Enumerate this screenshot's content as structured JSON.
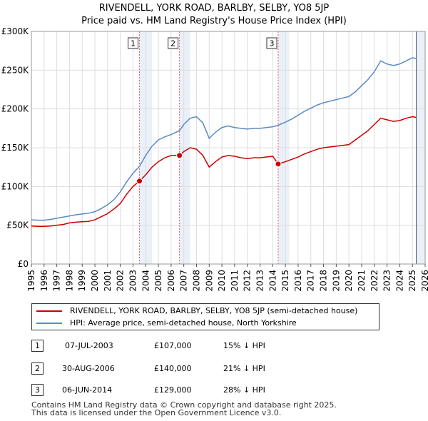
{
  "title_line1": "RIVENDELL, YORK ROAD, BARLBY, SELBY, YO8 5JP",
  "title_line2": "Price paid vs. HM Land Registry's House Price Index (HPI)",
  "chart_data": {
    "type": "line",
    "xlim": [
      1995,
      2026
    ],
    "ylim": [
      0,
      300000
    ],
    "y_ticks": [
      {
        "value": 0,
        "label": "£0"
      },
      {
        "value": 50000,
        "label": "£50K"
      },
      {
        "value": 100000,
        "label": "£100K"
      },
      {
        "value": 150000,
        "label": "£150K"
      },
      {
        "value": 200000,
        "label": "£200K"
      },
      {
        "value": 250000,
        "label": "£250K"
      },
      {
        "value": 300000,
        "label": "£300K"
      }
    ],
    "x_ticks": [
      "1995",
      "1996",
      "1997",
      "1998",
      "1999",
      "2000",
      "2001",
      "2002",
      "2003",
      "2004",
      "2005",
      "2006",
      "2007",
      "2008",
      "2009",
      "2010",
      "2011",
      "2012",
      "2013",
      "2014",
      "2015",
      "2016",
      "2017",
      "2018",
      "2019",
      "2020",
      "2021",
      "2022",
      "2023",
      "2024",
      "2025",
      "2026"
    ],
    "grid": true,
    "series": [
      {
        "name": "RIVENDELL, YORK ROAD, BARLBY, SELBY, YO8 5JP (semi-detached house)",
        "color": "#cc0000",
        "points": [
          [
            1995.0,
            49000
          ],
          [
            1995.5,
            48500
          ],
          [
            1996.0,
            48500
          ],
          [
            1996.5,
            49000
          ],
          [
            1997.0,
            50000
          ],
          [
            1997.5,
            51000
          ],
          [
            1998.0,
            53000
          ],
          [
            1998.5,
            54000
          ],
          [
            1999.0,
            54500
          ],
          [
            1999.5,
            55000
          ],
          [
            2000.0,
            57000
          ],
          [
            2000.5,
            61000
          ],
          [
            2001.0,
            65000
          ],
          [
            2001.5,
            71000
          ],
          [
            2002.0,
            78000
          ],
          [
            2002.5,
            90000
          ],
          [
            2003.0,
            100000
          ],
          [
            2003.51,
            107000
          ],
          [
            2004.0,
            115000
          ],
          [
            2004.5,
            125000
          ],
          [
            2005.0,
            132000
          ],
          [
            2005.5,
            137000
          ],
          [
            2006.0,
            140000
          ],
          [
            2006.66,
            140000
          ],
          [
            2007.0,
            145000
          ],
          [
            2007.5,
            150000
          ],
          [
            2008.0,
            148000
          ],
          [
            2008.5,
            140000
          ],
          [
            2009.0,
            125000
          ],
          [
            2009.5,
            132000
          ],
          [
            2010.0,
            138000
          ],
          [
            2010.5,
            140000
          ],
          [
            2011.0,
            139000
          ],
          [
            2011.5,
            137000
          ],
          [
            2012.0,
            136000
          ],
          [
            2012.5,
            137000
          ],
          [
            2013.0,
            137000
          ],
          [
            2013.5,
            138000
          ],
          [
            2014.0,
            139000
          ],
          [
            2014.43,
            129000
          ],
          [
            2015.0,
            132000
          ],
          [
            2015.5,
            135000
          ],
          [
            2016.0,
            138000
          ],
          [
            2016.5,
            142000
          ],
          [
            2017.0,
            145000
          ],
          [
            2017.5,
            148000
          ],
          [
            2018.0,
            150000
          ],
          [
            2018.5,
            151000
          ],
          [
            2019.0,
            152000
          ],
          [
            2019.5,
            153000
          ],
          [
            2020.0,
            154000
          ],
          [
            2020.5,
            160000
          ],
          [
            2021.0,
            166000
          ],
          [
            2021.5,
            172000
          ],
          [
            2022.0,
            180000
          ],
          [
            2022.5,
            188000
          ],
          [
            2023.0,
            186000
          ],
          [
            2023.5,
            184000
          ],
          [
            2024.0,
            185000
          ],
          [
            2024.5,
            188000
          ],
          [
            2025.0,
            190000
          ],
          [
            2025.3,
            189000
          ]
        ]
      },
      {
        "name": "HPI: Average price, semi-detached house, North Yorkshire",
        "color": "#5b8ac4",
        "points": [
          [
            1995.0,
            57000
          ],
          [
            1995.5,
            56500
          ],
          [
            1996.0,
            56500
          ],
          [
            1996.5,
            57500
          ],
          [
            1997.0,
            59000
          ],
          [
            1997.5,
            60500
          ],
          [
            1998.0,
            62000
          ],
          [
            1998.5,
            63500
          ],
          [
            1999.0,
            64500
          ],
          [
            1999.5,
            65500
          ],
          [
            2000.0,
            67500
          ],
          [
            2000.5,
            71500
          ],
          [
            2001.0,
            76500
          ],
          [
            2001.5,
            83000
          ],
          [
            2002.0,
            93000
          ],
          [
            2002.5,
            106000
          ],
          [
            2003.0,
            117000
          ],
          [
            2003.51,
            126000
          ],
          [
            2004.0,
            140000
          ],
          [
            2004.5,
            152000
          ],
          [
            2005.0,
            160000
          ],
          [
            2005.5,
            164000
          ],
          [
            2006.0,
            167000
          ],
          [
            2006.66,
            172000
          ],
          [
            2007.0,
            180000
          ],
          [
            2007.5,
            188000
          ],
          [
            2008.0,
            190000
          ],
          [
            2008.5,
            182000
          ],
          [
            2009.0,
            162000
          ],
          [
            2009.5,
            170000
          ],
          [
            2010.0,
            176000
          ],
          [
            2010.5,
            178000
          ],
          [
            2011.0,
            176000
          ],
          [
            2011.5,
            175000
          ],
          [
            2012.0,
            174000
          ],
          [
            2012.5,
            175000
          ],
          [
            2013.0,
            175000
          ],
          [
            2013.5,
            176000
          ],
          [
            2014.0,
            177000
          ],
          [
            2014.43,
            179000
          ],
          [
            2015.0,
            183000
          ],
          [
            2015.5,
            187000
          ],
          [
            2016.0,
            192000
          ],
          [
            2016.5,
            197000
          ],
          [
            2017.0,
            201000
          ],
          [
            2017.5,
            205000
          ],
          [
            2018.0,
            208000
          ],
          [
            2018.5,
            210000
          ],
          [
            2019.0,
            212000
          ],
          [
            2019.5,
            214000
          ],
          [
            2020.0,
            216000
          ],
          [
            2020.5,
            222000
          ],
          [
            2021.0,
            230000
          ],
          [
            2021.5,
            238000
          ],
          [
            2022.0,
            248000
          ],
          [
            2022.5,
            262000
          ],
          [
            2023.0,
            258000
          ],
          [
            2023.5,
            256000
          ],
          [
            2024.0,
            258000
          ],
          [
            2024.5,
            262000
          ],
          [
            2025.0,
            266000
          ],
          [
            2025.3,
            265000
          ]
        ]
      }
    ],
    "purchases": [
      {
        "label": "1",
        "x": 2003.51,
        "price": 107000
      },
      {
        "label": "2",
        "x": 2006.66,
        "price": 140000
      },
      {
        "label": "3",
        "x": 2014.43,
        "price": 129000
      }
    ],
    "highlight_ranges": [
      [
        2003.51,
        2004.5
      ],
      [
        2006.66,
        2007.5
      ],
      [
        2014.43,
        2015.3
      ],
      [
        2025.3,
        2026
      ]
    ]
  },
  "legend": [
    {
      "label": "RIVENDELL, YORK ROAD, BARLBY, SELBY, YO8 5JP (semi-detached house)",
      "color": "#cc0000"
    },
    {
      "label": "HPI: Average price, semi-detached house, North Yorkshire",
      "color": "#5b8ac4"
    }
  ],
  "transactions": [
    {
      "num": "1",
      "date": "07-JUL-2003",
      "price": "£107,000",
      "hpi": "15% ↓ HPI"
    },
    {
      "num": "2",
      "date": "30-AUG-2006",
      "price": "£140,000",
      "hpi": "21% ↓ HPI"
    },
    {
      "num": "3",
      "date": "06-JUN-2014",
      "price": "£129,000",
      "hpi": "28% ↓ HPI"
    }
  ],
  "footer_line1": "Contains HM Land Registry data © Crown copyright and database right 2025.",
  "footer_line2": "This data is licensed under the Open Government Licence v3.0."
}
